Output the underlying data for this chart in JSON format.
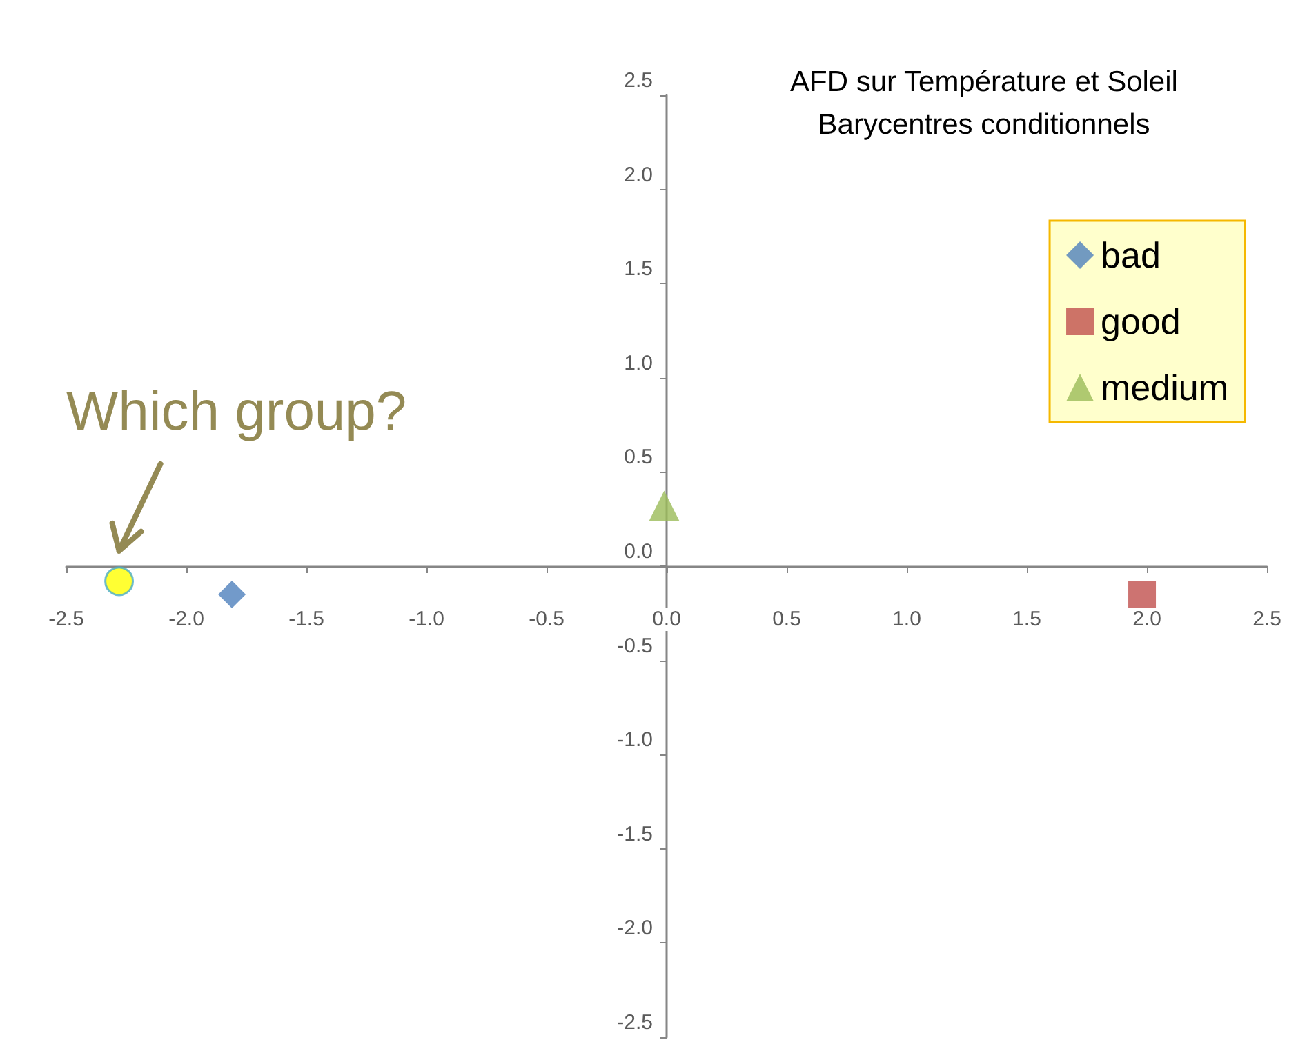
{
  "chart_data": {
    "type": "scatter",
    "title": "AFD sur Température et Soleil",
    "subtitle": "Barycentres conditionnels",
    "xlim": [
      -2.5,
      2.5
    ],
    "ylim": [
      -2.5,
      2.5
    ],
    "xticks": [
      -2.5,
      {
        "value": -2,
        "label": "-2.0"
      },
      -1.5,
      {
        "value": -1,
        "label": "-1.0"
      },
      -0.5,
      {
        "value": 0,
        "label": "0.0"
      },
      0.5,
      {
        "value": 1,
        "label": "1.0"
      },
      1.5,
      {
        "value": 2,
        "label": "2.0"
      },
      2.5
    ],
    "yticks": [
      -2.5,
      {
        "value": -2,
        "label": "-2.0"
      },
      -1.5,
      {
        "value": -1,
        "label": "-1.0"
      },
      -0.5,
      {
        "value": 0,
        "label": "0.0"
      },
      0.5,
      {
        "value": 1,
        "label": "1.0"
      },
      1.5,
      {
        "value": 2,
        "label": "2.0"
      },
      2.5
    ],
    "legend": "top right",
    "series": [
      {
        "name": "bad",
        "color": "#4f81bd",
        "marker": "diamond",
        "x": [
          -1.81
        ],
        "values": [
          -0.15
        ]
      },
      {
        "name": "good",
        "color": "#c0504d",
        "marker": "square",
        "x": [
          1.98
        ],
        "values": [
          -0.15
        ]
      },
      {
        "name": "medium",
        "color": "#9bbb59",
        "marker": "triangle",
        "x": [
          -0.01
        ],
        "values": [
          0.32
        ]
      },
      {
        "color": "#ffff00",
        "marker": "circle",
        "x": [
          -2.28
        ],
        "values": [
          -0.08
        ]
      }
    ],
    "annotations": [
      {
        "text": "Which group?",
        "x": -2.28,
        "y": -0.08
      }
    ]
  }
}
